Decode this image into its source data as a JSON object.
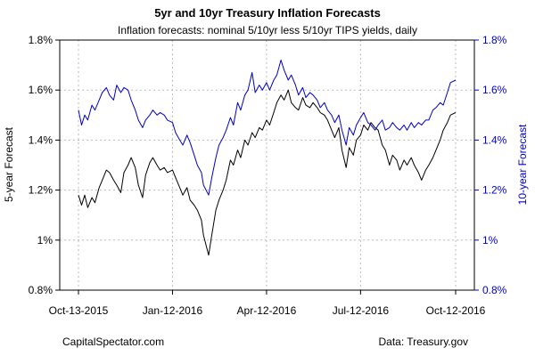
{
  "chart_data": {
    "type": "line",
    "title": "5yr and 10yr Treasury Inflation Forecasts",
    "subtitle": "Inflation forecasts: nominal 5/10yr less 5/10yr TIPS yields, daily",
    "xlabel": "",
    "ylabel_left": "5-year Forecast",
    "ylabel_right": "10-year Forecast",
    "ylim_left": [
      0.8,
      1.8
    ],
    "ylim_right": [
      0.8,
      1.8
    ],
    "y_ticks": [
      0.8,
      1.0,
      1.2,
      1.4,
      1.6,
      1.8
    ],
    "y_tick_labels": [
      "0.8%",
      "1%",
      "1.2%",
      "1.4%",
      "1.6%",
      "1.8%"
    ],
    "x_range": [
      "2015-10-13",
      "2016-10-12"
    ],
    "x_ticks": [
      "2015-10-13",
      "2016-01-12",
      "2016-04-12",
      "2016-07-12",
      "2016-10-12"
    ],
    "x_tick_labels": [
      "Oct-13-2015",
      "Jan-12-2016",
      "Apr-12-2016",
      "Jul-12-2016",
      "Oct-12-2016"
    ],
    "grid": true,
    "source_left": "CapitalSpectator.com",
    "source_right": "Data: Treasury.gov",
    "colors": {
      "five_year": "#000000",
      "ten_year": "#0000cc",
      "right_axis": "#0000cc",
      "grid": "#bbbbbb"
    },
    "series": [
      {
        "axis": "left",
        "x": [
          "2015-10-13",
          "2015-10-16",
          "2015-10-19",
          "2015-10-22",
          "2015-10-26",
          "2015-10-29",
          "2015-11-02",
          "2015-11-05",
          "2015-11-09",
          "2015-11-12",
          "2015-11-16",
          "2015-11-19",
          "2015-11-23",
          "2015-11-26",
          "2015-11-30",
          "2015-12-03",
          "2015-12-07",
          "2015-12-10",
          "2015-12-14",
          "2015-12-17",
          "2015-12-21",
          "2015-12-24",
          "2015-12-28",
          "2015-12-31",
          "2016-01-04",
          "2016-01-07",
          "2016-01-12",
          "2016-01-15",
          "2016-01-19",
          "2016-01-22",
          "2016-01-26",
          "2016-01-29",
          "2016-02-02",
          "2016-02-05",
          "2016-02-09",
          "2016-02-11",
          "2016-02-16",
          "2016-02-19",
          "2016-02-23",
          "2016-02-26",
          "2016-03-01",
          "2016-03-04",
          "2016-03-08",
          "2016-03-11",
          "2016-03-15",
          "2016-03-18",
          "2016-03-22",
          "2016-03-25",
          "2016-03-29",
          "2016-04-01",
          "2016-04-05",
          "2016-04-08",
          "2016-04-12",
          "2016-04-15",
          "2016-04-19",
          "2016-04-22",
          "2016-04-26",
          "2016-04-29",
          "2016-05-03",
          "2016-05-06",
          "2016-05-10",
          "2016-05-13",
          "2016-05-17",
          "2016-05-20",
          "2016-05-24",
          "2016-05-27",
          "2016-05-31",
          "2016-06-03",
          "2016-06-07",
          "2016-06-10",
          "2016-06-14",
          "2016-06-17",
          "2016-06-21",
          "2016-06-24",
          "2016-06-28",
          "2016-07-01",
          "2016-07-05",
          "2016-07-08",
          "2016-07-12",
          "2016-07-15",
          "2016-07-19",
          "2016-07-22",
          "2016-07-26",
          "2016-07-29",
          "2016-08-02",
          "2016-08-05",
          "2016-08-09",
          "2016-08-12",
          "2016-08-16",
          "2016-08-19",
          "2016-08-23",
          "2016-08-26",
          "2016-08-30",
          "2016-09-02",
          "2016-09-06",
          "2016-09-09",
          "2016-09-13",
          "2016-09-16",
          "2016-09-20",
          "2016-09-23",
          "2016-09-27",
          "2016-09-30",
          "2016-10-04",
          "2016-10-07",
          "2016-10-12"
        ],
        "values": [
          1.18,
          1.14,
          1.18,
          1.13,
          1.17,
          1.15,
          1.21,
          1.24,
          1.28,
          1.27,
          1.24,
          1.22,
          1.19,
          1.27,
          1.3,
          1.33,
          1.29,
          1.22,
          1.17,
          1.26,
          1.31,
          1.33,
          1.3,
          1.28,
          1.29,
          1.27,
          1.28,
          1.25,
          1.21,
          1.18,
          1.21,
          1.16,
          1.14,
          1.12,
          1.08,
          1.02,
          0.94,
          1.02,
          1.12,
          1.16,
          1.2,
          1.24,
          1.32,
          1.3,
          1.36,
          1.33,
          1.4,
          1.38,
          1.43,
          1.41,
          1.45,
          1.44,
          1.48,
          1.46,
          1.51,
          1.55,
          1.58,
          1.56,
          1.6,
          1.55,
          1.53,
          1.52,
          1.57,
          1.54,
          1.53,
          1.55,
          1.53,
          1.51,
          1.5,
          1.48,
          1.44,
          1.41,
          1.45,
          1.36,
          1.29,
          1.37,
          1.34,
          1.4,
          1.42,
          1.46,
          1.44,
          1.47,
          1.45,
          1.44,
          1.38,
          1.36,
          1.3,
          1.34,
          1.32,
          1.28,
          1.32,
          1.3,
          1.33,
          1.3,
          1.27,
          1.24,
          1.28,
          1.3,
          1.33,
          1.36,
          1.4,
          1.44,
          1.47,
          1.5,
          1.51
        ]
      },
      {
        "axis": "right",
        "x": [
          "2015-10-13",
          "2015-10-16",
          "2015-10-19",
          "2015-10-22",
          "2015-10-26",
          "2015-10-29",
          "2015-11-02",
          "2015-11-05",
          "2015-11-09",
          "2015-11-12",
          "2015-11-16",
          "2015-11-19",
          "2015-11-23",
          "2015-11-26",
          "2015-11-30",
          "2015-12-03",
          "2015-12-07",
          "2015-12-10",
          "2015-12-14",
          "2015-12-17",
          "2015-12-21",
          "2015-12-24",
          "2015-12-28",
          "2015-12-31",
          "2016-01-04",
          "2016-01-07",
          "2016-01-12",
          "2016-01-15",
          "2016-01-19",
          "2016-01-22",
          "2016-01-26",
          "2016-01-29",
          "2016-02-02",
          "2016-02-05",
          "2016-02-09",
          "2016-02-11",
          "2016-02-16",
          "2016-02-19",
          "2016-02-23",
          "2016-02-26",
          "2016-03-01",
          "2016-03-04",
          "2016-03-08",
          "2016-03-11",
          "2016-03-15",
          "2016-03-18",
          "2016-03-22",
          "2016-03-25",
          "2016-03-29",
          "2016-04-01",
          "2016-04-05",
          "2016-04-08",
          "2016-04-12",
          "2016-04-15",
          "2016-04-19",
          "2016-04-22",
          "2016-04-26",
          "2016-04-29",
          "2016-05-03",
          "2016-05-06",
          "2016-05-10",
          "2016-05-13",
          "2016-05-17",
          "2016-05-20",
          "2016-05-24",
          "2016-05-27",
          "2016-05-31",
          "2016-06-03",
          "2016-06-07",
          "2016-06-10",
          "2016-06-14",
          "2016-06-17",
          "2016-06-21",
          "2016-06-24",
          "2016-06-28",
          "2016-07-01",
          "2016-07-05",
          "2016-07-08",
          "2016-07-12",
          "2016-07-15",
          "2016-07-19",
          "2016-07-22",
          "2016-07-26",
          "2016-07-29",
          "2016-08-02",
          "2016-08-05",
          "2016-08-09",
          "2016-08-12",
          "2016-08-16",
          "2016-08-19",
          "2016-08-23",
          "2016-08-26",
          "2016-08-30",
          "2016-09-02",
          "2016-09-06",
          "2016-09-09",
          "2016-09-13",
          "2016-09-16",
          "2016-09-20",
          "2016-09-23",
          "2016-09-27",
          "2016-09-30",
          "2016-10-04",
          "2016-10-07",
          "2016-10-12"
        ],
        "values": [
          1.52,
          1.46,
          1.5,
          1.48,
          1.54,
          1.52,
          1.56,
          1.59,
          1.61,
          1.58,
          1.56,
          1.62,
          1.59,
          1.61,
          1.6,
          1.56,
          1.52,
          1.48,
          1.45,
          1.48,
          1.5,
          1.52,
          1.5,
          1.51,
          1.5,
          1.48,
          1.47,
          1.43,
          1.4,
          1.38,
          1.42,
          1.39,
          1.34,
          1.3,
          1.27,
          1.22,
          1.18,
          1.25,
          1.33,
          1.38,
          1.41,
          1.44,
          1.49,
          1.46,
          1.55,
          1.52,
          1.58,
          1.6,
          1.67,
          1.59,
          1.62,
          1.6,
          1.63,
          1.6,
          1.64,
          1.66,
          1.72,
          1.68,
          1.64,
          1.66,
          1.62,
          1.58,
          1.61,
          1.57,
          1.59,
          1.58,
          1.56,
          1.53,
          1.55,
          1.52,
          1.5,
          1.47,
          1.5,
          1.44,
          1.38,
          1.45,
          1.42,
          1.46,
          1.49,
          1.51,
          1.47,
          1.46,
          1.44,
          1.46,
          1.48,
          1.44,
          1.45,
          1.47,
          1.45,
          1.44,
          1.46,
          1.44,
          1.47,
          1.45,
          1.47,
          1.46,
          1.48,
          1.48,
          1.52,
          1.53,
          1.55,
          1.54,
          1.59,
          1.63,
          1.64
        ]
      }
    ]
  }
}
